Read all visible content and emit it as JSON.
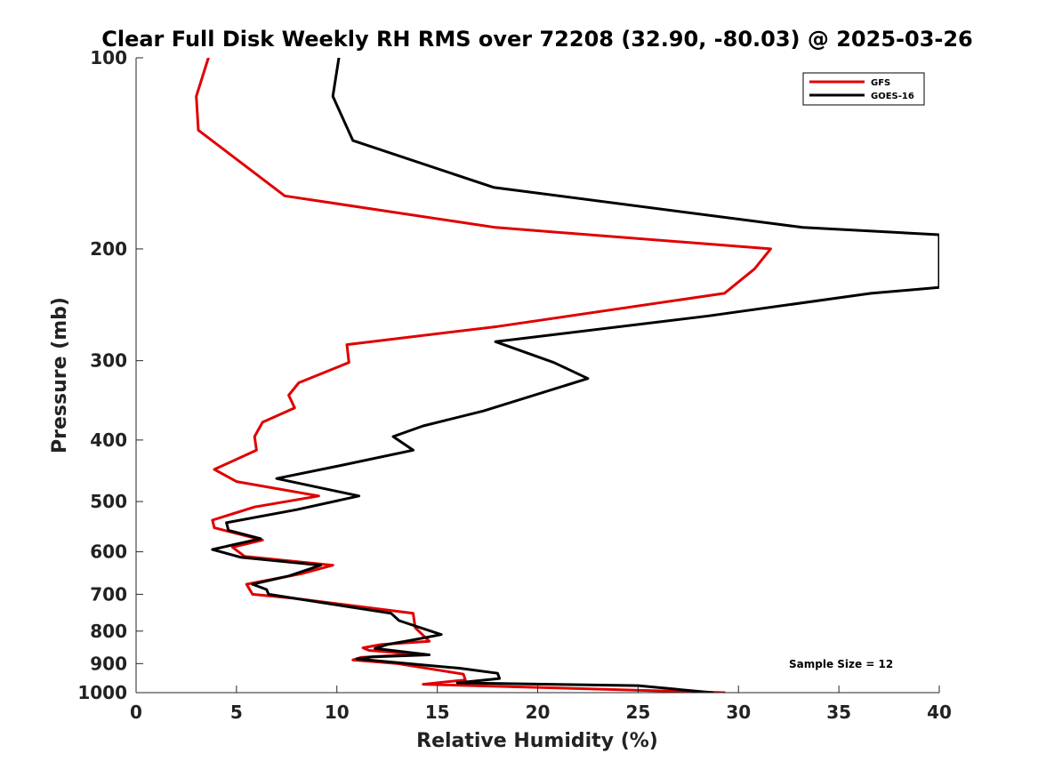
{
  "chart_data": {
    "type": "line",
    "title": "Clear Full Disk Weekly RH RMS over 72208 (32.90, -80.03) @ 2025-03-26",
    "xlabel": "Relative Humidity (%)",
    "ylabel": "Pressure (mb)",
    "xlim": [
      0,
      40
    ],
    "ylim": [
      100,
      1000
    ],
    "y_scale": "log",
    "y_reversed": true,
    "xticks": [
      0,
      5,
      10,
      15,
      20,
      25,
      30,
      35,
      40
    ],
    "yticks": [
      100,
      200,
      300,
      400,
      500,
      600,
      700,
      800,
      900,
      1000
    ],
    "grid": false,
    "legend_position": "top-right",
    "annotation": "Sample Size = 12",
    "series": [
      {
        "name": "GFS",
        "color": "#e00000",
        "points": [
          [
            3.6,
            100
          ],
          [
            3.0,
            115
          ],
          [
            3.1,
            130
          ],
          [
            7.4,
            165
          ],
          [
            17.9,
            185
          ],
          [
            31.6,
            200
          ],
          [
            30.8,
            215
          ],
          [
            29.3,
            235
          ],
          [
            18.0,
            265
          ],
          [
            10.5,
            283
          ],
          [
            10.6,
            302
          ],
          [
            8.1,
            325
          ],
          [
            7.6,
            340
          ],
          [
            7.9,
            356
          ],
          [
            6.3,
            375
          ],
          [
            5.9,
            395
          ],
          [
            6.0,
            415
          ],
          [
            3.9,
            445
          ],
          [
            5.0,
            465
          ],
          [
            9.1,
            490
          ],
          [
            5.9,
            510
          ],
          [
            3.8,
            535
          ],
          [
            3.9,
            550
          ],
          [
            6.3,
            575
          ],
          [
            4.8,
            590
          ],
          [
            5.4,
            610
          ],
          [
            9.8,
            630
          ],
          [
            8.2,
            650
          ],
          [
            5.5,
            675
          ],
          [
            5.8,
            700
          ],
          [
            7.8,
            710
          ],
          [
            13.8,
            750
          ],
          [
            13.9,
            790
          ],
          [
            14.6,
            830
          ],
          [
            12.2,
            840
          ],
          [
            11.3,
            850
          ],
          [
            11.6,
            858
          ],
          [
            14.0,
            870
          ],
          [
            11.2,
            880
          ],
          [
            10.8,
            888
          ],
          [
            13.0,
            900
          ],
          [
            16.3,
            935
          ],
          [
            16.4,
            955
          ],
          [
            14.3,
            970
          ],
          [
            29.3,
            1000
          ]
        ]
      },
      {
        "name": "GOES-16",
        "color": "#000000",
        "points": [
          [
            10.1,
            100
          ],
          [
            9.8,
            115
          ],
          [
            10.8,
            135
          ],
          [
            17.8,
            160
          ],
          [
            33.2,
            185
          ],
          [
            40.0,
            190
          ],
          [
            40.0,
            230
          ],
          [
            36.6,
            235
          ],
          [
            28.5,
            255
          ],
          [
            17.9,
            280
          ],
          [
            20.8,
            302
          ],
          [
            22.5,
            320
          ],
          [
            17.3,
            360
          ],
          [
            14.3,
            380
          ],
          [
            12.8,
            395
          ],
          [
            13.8,
            415
          ],
          [
            10.0,
            440
          ],
          [
            7.0,
            460
          ],
          [
            11.1,
            490
          ],
          [
            8.0,
            515
          ],
          [
            4.5,
            540
          ],
          [
            4.6,
            555
          ],
          [
            6.2,
            572
          ],
          [
            3.8,
            595
          ],
          [
            5.2,
            612
          ],
          [
            9.2,
            630
          ],
          [
            7.6,
            655
          ],
          [
            5.8,
            675
          ],
          [
            6.5,
            688
          ],
          [
            6.6,
            700
          ],
          [
            12.7,
            750
          ],
          [
            13.1,
            770
          ],
          [
            15.2,
            810
          ],
          [
            13.6,
            828
          ],
          [
            12.5,
            840
          ],
          [
            11.9,
            852
          ],
          [
            14.6,
            872
          ],
          [
            11.8,
            878
          ],
          [
            11.0,
            885
          ],
          [
            16.1,
            915
          ],
          [
            18.0,
            932
          ],
          [
            18.1,
            950
          ],
          [
            16.0,
            965
          ],
          [
            25.0,
            975
          ],
          [
            28.7,
            1000
          ]
        ]
      }
    ]
  }
}
